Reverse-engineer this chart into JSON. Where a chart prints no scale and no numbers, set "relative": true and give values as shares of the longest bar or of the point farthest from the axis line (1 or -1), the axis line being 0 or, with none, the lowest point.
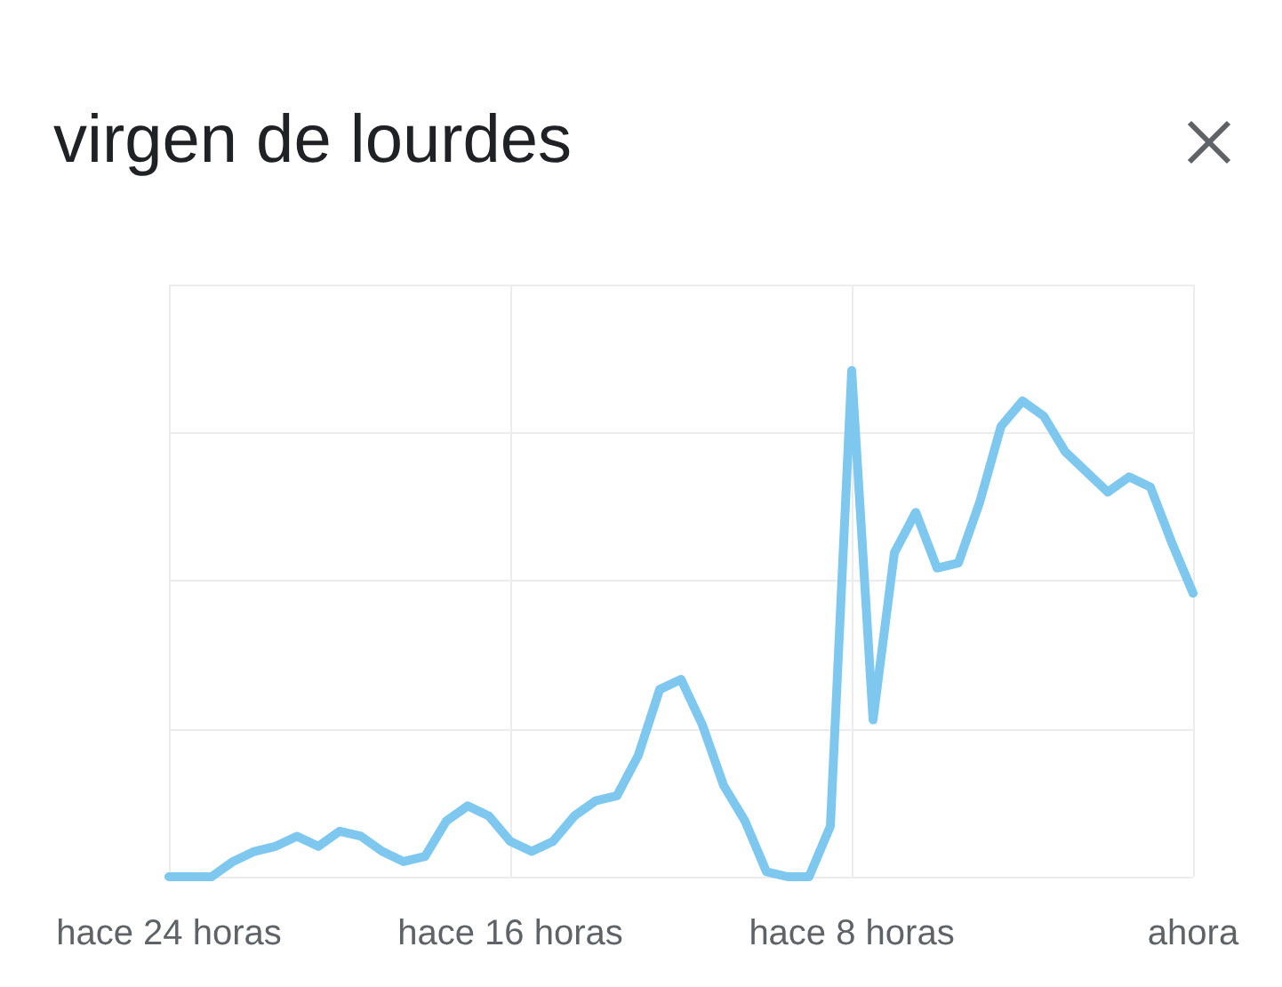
{
  "chart_data": {
    "type": "line",
    "title": "virgen de lourdes",
    "relative": true,
    "categories": [
      "hace 24 horas",
      null,
      null,
      null,
      null,
      null,
      null,
      null,
      null,
      null,
      null,
      null,
      null,
      null,
      null,
      null,
      "hace 16 horas",
      null,
      null,
      null,
      null,
      null,
      null,
      null,
      null,
      null,
      null,
      null,
      null,
      null,
      null,
      null,
      "hace 8 horas",
      null,
      null,
      null,
      null,
      null,
      null,
      null,
      null,
      null,
      null,
      null,
      null,
      null,
      null,
      null,
      "ahora"
    ],
    "series": [
      {
        "color": "#7ec8f0",
        "values": [
          0,
          0,
          0,
          0.03,
          0.05,
          0.06,
          0.08,
          0.06,
          0.09,
          0.08,
          0.05,
          0.03,
          0.04,
          0.11,
          0.14,
          0.12,
          0.07,
          0.05,
          0.07,
          0.12,
          0.15,
          0.16,
          0.24,
          0.37,
          0.39,
          0.3,
          0.18,
          0.11,
          0.01,
          0,
          0,
          0.1,
          1,
          0.31,
          0.64,
          0.72,
          0.61,
          0.62,
          0.74,
          0.89,
          0.94,
          0.91,
          0.84,
          0.8,
          0.76,
          0.79,
          0.77,
          0.66,
          0.56
        ]
      }
    ],
    "grid": true,
    "marker": "none",
    "line_style": "solid"
  }
}
